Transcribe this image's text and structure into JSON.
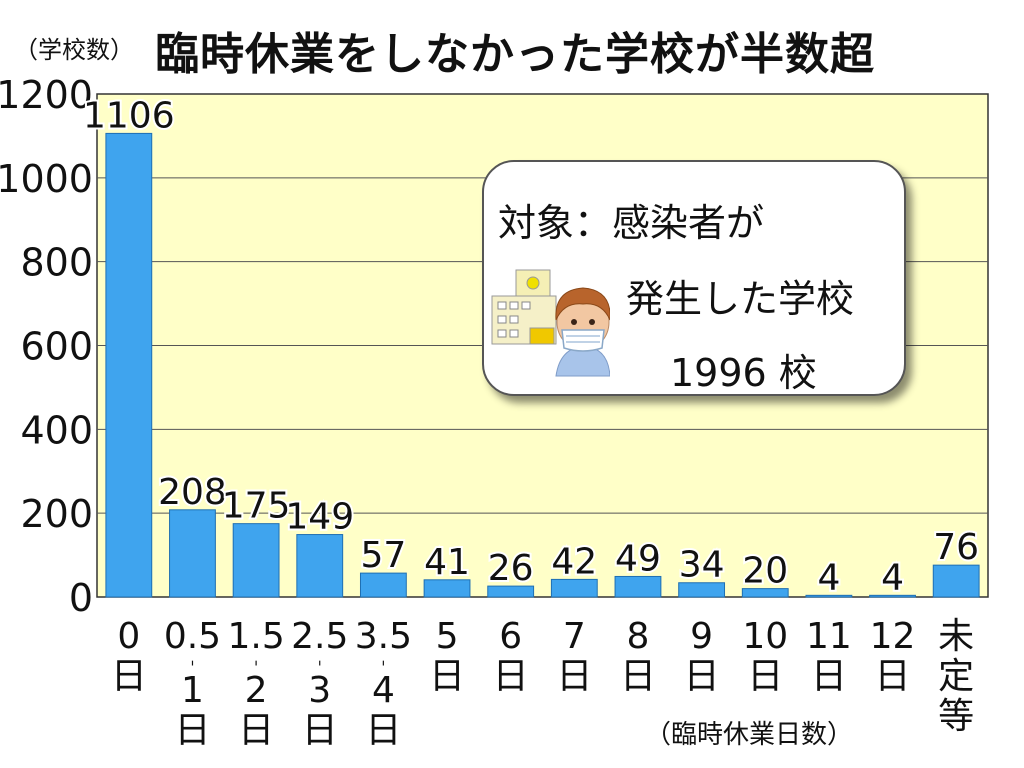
{
  "chart_data": {
    "type": "bar",
    "title": "臨時休業をしなかった学校が半数超",
    "ylabel": "（学校数）",
    "xlabel": "（臨時休業日数）",
    "ylim": [
      0,
      1200
    ],
    "yticks": [
      "0",
      "200",
      "400",
      "600",
      "800",
      "1000",
      "1200"
    ],
    "grid": true,
    "categories": [
      [
        "0",
        "日"
      ],
      [
        "0.5",
        "ˈ",
        "1",
        "日"
      ],
      [
        "1.5",
        "ˈ",
        "2",
        "日"
      ],
      [
        "2.5",
        "ˈ",
        "3",
        "日"
      ],
      [
        "3.5",
        "ˈ",
        "4",
        "日"
      ],
      [
        "5",
        "日"
      ],
      [
        "6",
        "日"
      ],
      [
        "7",
        "日"
      ],
      [
        "8",
        "日"
      ],
      [
        "9",
        "日"
      ],
      [
        "10",
        "日"
      ],
      [
        "11",
        "日"
      ],
      [
        "12",
        "日"
      ],
      [
        "未",
        "定",
        "等"
      ]
    ],
    "values": [
      1106,
      208,
      175,
      149,
      57,
      41,
      26,
      42,
      49,
      34,
      20,
      4,
      4,
      76
    ],
    "labels": [
      "1106",
      "208",
      "175",
      "149",
      "57",
      "41",
      "26",
      "42",
      "49",
      "34",
      "20",
      "4",
      "4",
      "76"
    ],
    "bar_color": "#3fa4ee",
    "plot_background": "#ffffc8"
  },
  "callout": {
    "line1": "対象：感染者が",
    "line2": "発生した学校",
    "line3": "1996 校"
  }
}
